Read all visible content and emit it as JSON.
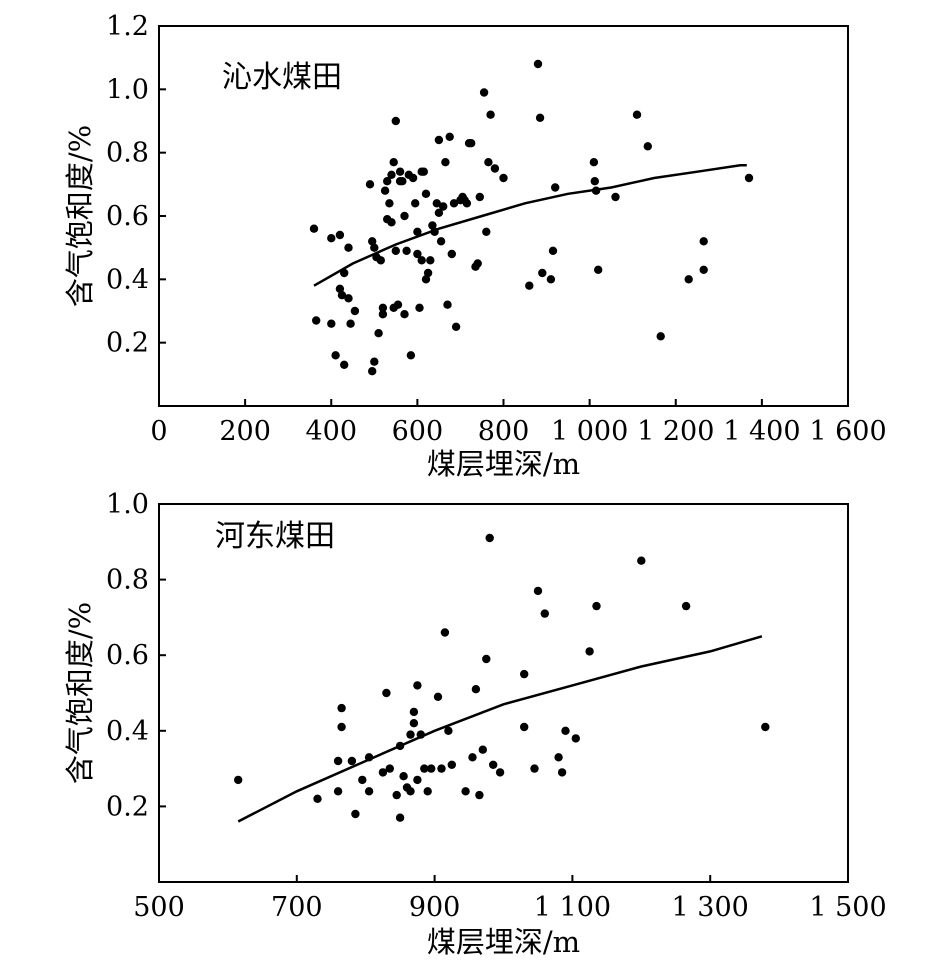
{
  "chart_data": [
    {
      "type": "scatter",
      "panel_label": "沁水煤田",
      "xlabel": "煤层埋深/m",
      "ylabel": "含气饱和度/%",
      "xlim": [
        0,
        1600
      ],
      "ylim": [
        0,
        1.2
      ],
      "x_ticks": [
        0,
        200,
        400,
        600,
        800,
        1000,
        1200,
        1400,
        1600
      ],
      "x_tick_labels": [
        "0",
        "200",
        "400",
        "600",
        "800",
        "1 000",
        "1 200",
        "1 400",
        "1 600"
      ],
      "y_ticks": [
        0.2,
        0.4,
        0.6,
        0.8,
        1.0,
        1.2
      ],
      "y_tick_labels": [
        "0.2",
        "0.4",
        "0.6",
        "0.8",
        "1.0",
        "1.2"
      ],
      "grid": false,
      "series": [
        {
          "mode": "markers",
          "points": [
            [
              360,
              0.56
            ],
            [
              365,
              0.27
            ],
            [
              400,
              0.26
            ],
            [
              400,
              0.53
            ],
            [
              410,
              0.16
            ],
            [
              420,
              0.54
            ],
            [
              420,
              0.37
            ],
            [
              425,
              0.35
            ],
            [
              430,
              0.42
            ],
            [
              430,
              0.13
            ],
            [
              440,
              0.5
            ],
            [
              440,
              0.34
            ],
            [
              445,
              0.26
            ],
            [
              455,
              0.3
            ],
            [
              490,
              0.7
            ],
            [
              495,
              0.52
            ],
            [
              495,
              0.11
            ],
            [
              500,
              0.14
            ],
            [
              500,
              0.5
            ],
            [
              505,
              0.47
            ],
            [
              510,
              0.23
            ],
            [
              515,
              0.46
            ],
            [
              520,
              0.29
            ],
            [
              520,
              0.31
            ],
            [
              525,
              0.68
            ],
            [
              530,
              0.59
            ],
            [
              530,
              0.71
            ],
            [
              535,
              0.64
            ],
            [
              540,
              0.73
            ],
            [
              540,
              0.58
            ],
            [
              545,
              0.77
            ],
            [
              545,
              0.31
            ],
            [
              550,
              0.9
            ],
            [
              550,
              0.49
            ],
            [
              555,
              0.32
            ],
            [
              560,
              0.74
            ],
            [
              560,
              0.71
            ],
            [
              565,
              0.71
            ],
            [
              570,
              0.6
            ],
            [
              570,
              0.29
            ],
            [
              575,
              0.49
            ],
            [
              580,
              0.73
            ],
            [
              585,
              0.16
            ],
            [
              590,
              0.72
            ],
            [
              595,
              0.64
            ],
            [
              600,
              0.55
            ],
            [
              600,
              0.48
            ],
            [
              605,
              0.31
            ],
            [
              610,
              0.74
            ],
            [
              610,
              0.46
            ],
            [
              615,
              0.74
            ],
            [
              620,
              0.67
            ],
            [
              620,
              0.4
            ],
            [
              625,
              0.42
            ],
            [
              630,
              0.46
            ],
            [
              635,
              0.57
            ],
            [
              640,
              0.55
            ],
            [
              645,
              0.64
            ],
            [
              650,
              0.84
            ],
            [
              650,
              0.61
            ],
            [
              655,
              0.52
            ],
            [
              660,
              0.63
            ],
            [
              665,
              0.77
            ],
            [
              670,
              0.32
            ],
            [
              675,
              0.85
            ],
            [
              680,
              0.48
            ],
            [
              685,
              0.64
            ],
            [
              690,
              0.25
            ],
            [
              700,
              0.65
            ],
            [
              705,
              0.66
            ],
            [
              710,
              0.65
            ],
            [
              715,
              0.64
            ],
            [
              720,
              0.83
            ],
            [
              725,
              0.83
            ],
            [
              735,
              0.44
            ],
            [
              740,
              0.45
            ],
            [
              745,
              0.66
            ],
            [
              755,
              0.99
            ],
            [
              760,
              0.55
            ],
            [
              765,
              0.77
            ],
            [
              770,
              0.92
            ],
            [
              780,
              0.75
            ],
            [
              800,
              0.72
            ],
            [
              860,
              0.38
            ],
            [
              880,
              1.08
            ],
            [
              885,
              0.91
            ],
            [
              890,
              0.42
            ],
            [
              910,
              0.4
            ],
            [
              915,
              0.49
            ],
            [
              920,
              0.69
            ],
            [
              1010,
              0.77
            ],
            [
              1012,
              0.71
            ],
            [
              1015,
              0.68
            ],
            [
              1020,
              0.43
            ],
            [
              1060,
              0.66
            ],
            [
              1110,
              0.92
            ],
            [
              1135,
              0.82
            ],
            [
              1165,
              0.22
            ],
            [
              1230,
              0.4
            ],
            [
              1265,
              0.52
            ],
            [
              1265,
              0.43
            ],
            [
              1370,
              0.72
            ]
          ]
        },
        {
          "mode": "line",
          "x": [
            360,
            450,
            550,
            650,
            750,
            850,
            950,
            1050,
            1150,
            1250,
            1350,
            1365
          ],
          "y": [
            0.38,
            0.45,
            0.51,
            0.56,
            0.6,
            0.64,
            0.67,
            0.69,
            0.72,
            0.74,
            0.76,
            0.76
          ]
        }
      ]
    },
    {
      "type": "scatter",
      "panel_label": "河东煤田",
      "xlabel": "煤层埋深/m",
      "ylabel": "含气饱和度/%",
      "xlim": [
        500,
        1500
      ],
      "ylim": [
        0,
        1.0
      ],
      "x_ticks": [
        500,
        700,
        900,
        1100,
        1300,
        1500
      ],
      "x_tick_labels": [
        "500",
        "700",
        "900",
        "1 100",
        "1 300",
        "1 500"
      ],
      "y_ticks": [
        0.2,
        0.4,
        0.6,
        0.8,
        1.0
      ],
      "y_tick_labels": [
        "0.2",
        "0.4",
        "0.6",
        "0.8",
        "1.0"
      ],
      "grid": false,
      "series": [
        {
          "mode": "markers",
          "points": [
            [
              615,
              0.27
            ],
            [
              730,
              0.22
            ],
            [
              760,
              0.24
            ],
            [
              765,
              0.46
            ],
            [
              765,
              0.41
            ],
            [
              760,
              0.32
            ],
            [
              780,
              0.32
            ],
            [
              785,
              0.18
            ],
            [
              795,
              0.27
            ],
            [
              805,
              0.24
            ],
            [
              805,
              0.33
            ],
            [
              825,
              0.29
            ],
            [
              830,
              0.5
            ],
            [
              835,
              0.3
            ],
            [
              845,
              0.23
            ],
            [
              850,
              0.17
            ],
            [
              850,
              0.36
            ],
            [
              855,
              0.28
            ],
            [
              860,
              0.25
            ],
            [
              865,
              0.39
            ],
            [
              865,
              0.24
            ],
            [
              870,
              0.42
            ],
            [
              870,
              0.45
            ],
            [
              875,
              0.52
            ],
            [
              875,
              0.27
            ],
            [
              880,
              0.39
            ],
            [
              885,
              0.3
            ],
            [
              890,
              0.24
            ],
            [
              895,
              0.3
            ],
            [
              905,
              0.49
            ],
            [
              910,
              0.3
            ],
            [
              915,
              0.66
            ],
            [
              920,
              0.4
            ],
            [
              925,
              0.31
            ],
            [
              945,
              0.24
            ],
            [
              955,
              0.33
            ],
            [
              960,
              0.51
            ],
            [
              965,
              0.23
            ],
            [
              970,
              0.35
            ],
            [
              975,
              0.59
            ],
            [
              980,
              0.91
            ],
            [
              985,
              0.31
            ],
            [
              995,
              0.29
            ],
            [
              1030,
              0.55
            ],
            [
              1030,
              0.41
            ],
            [
              1045,
              0.3
            ],
            [
              1050,
              0.77
            ],
            [
              1060,
              0.71
            ],
            [
              1080,
              0.33
            ],
            [
              1085,
              0.29
            ],
            [
              1090,
              0.4
            ],
            [
              1105,
              0.38
            ],
            [
              1125,
              0.61
            ],
            [
              1135,
              0.73
            ],
            [
              1200,
              0.85
            ],
            [
              1265,
              0.73
            ],
            [
              1380,
              0.41
            ]
          ]
        },
        {
          "mode": "line",
          "x": [
            615,
            700,
            800,
            900,
            1000,
            1100,
            1200,
            1300,
            1375
          ],
          "y": [
            0.16,
            0.24,
            0.32,
            0.4,
            0.47,
            0.52,
            0.57,
            0.61,
            0.65
          ]
        }
      ]
    }
  ]
}
